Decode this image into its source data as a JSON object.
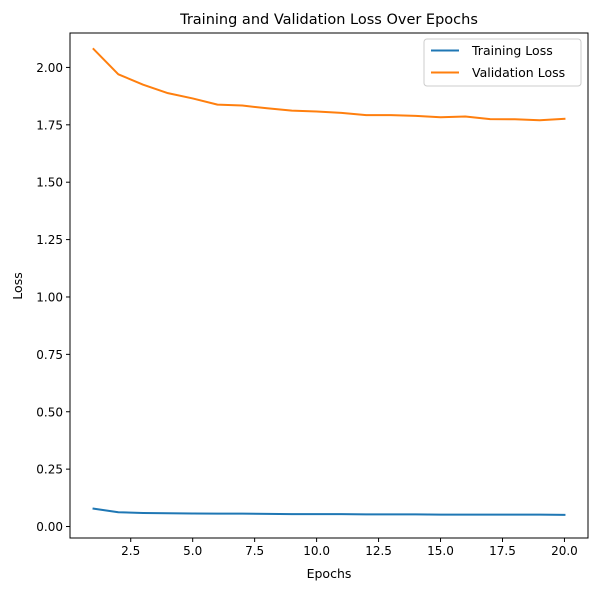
{
  "chart_data": {
    "type": "line",
    "title": "Training and Validation Loss Over Epochs",
    "xlabel": "Epochs",
    "ylabel": "Loss",
    "xlim": [
      0.05,
      20.95
    ],
    "ylim": [
      -0.05,
      2.15
    ],
    "xticks": [
      {
        "value": 2.5,
        "label": "2.5"
      },
      {
        "value": 5.0,
        "label": "5.0"
      },
      {
        "value": 7.5,
        "label": "7.5"
      },
      {
        "value": 10.0,
        "label": "10.0"
      },
      {
        "value": 12.5,
        "label": "12.5"
      },
      {
        "value": 15.0,
        "label": "15.0"
      },
      {
        "value": 17.5,
        "label": "17.5"
      },
      {
        "value": 20.0,
        "label": "20.0"
      }
    ],
    "yticks": [
      {
        "value": 0.0,
        "label": "0.00"
      },
      {
        "value": 0.25,
        "label": "0.25"
      },
      {
        "value": 0.5,
        "label": "0.50"
      },
      {
        "value": 0.75,
        "label": "0.75"
      },
      {
        "value": 1.0,
        "label": "1.00"
      },
      {
        "value": 1.25,
        "label": "1.25"
      },
      {
        "value": 1.5,
        "label": "1.50"
      },
      {
        "value": 1.75,
        "label": "1.75"
      },
      {
        "value": 2.0,
        "label": "2.00"
      }
    ],
    "grid": false,
    "legend_position": "top-right",
    "x": [
      1,
      2,
      3,
      4,
      5,
      6,
      7,
      8,
      9,
      10,
      11,
      12,
      13,
      14,
      15,
      16,
      17,
      18,
      19,
      20
    ],
    "series": [
      {
        "name": "Training Loss",
        "color": "#1f77b4",
        "values": [
          0.078,
          0.062,
          0.059,
          0.058,
          0.057,
          0.056,
          0.056,
          0.055,
          0.054,
          0.054,
          0.054,
          0.053,
          0.053,
          0.053,
          0.052,
          0.052,
          0.052,
          0.052,
          0.052,
          0.051
        ]
      },
      {
        "name": "Validation Loss",
        "color": "#ff7f0e",
        "values": [
          2.08,
          1.97,
          1.925,
          1.888,
          1.865,
          1.838,
          1.834,
          1.822,
          1.812,
          1.808,
          1.802,
          1.792,
          1.792,
          1.789,
          1.783,
          1.786,
          1.775,
          1.774,
          1.77,
          1.776
        ]
      }
    ]
  }
}
